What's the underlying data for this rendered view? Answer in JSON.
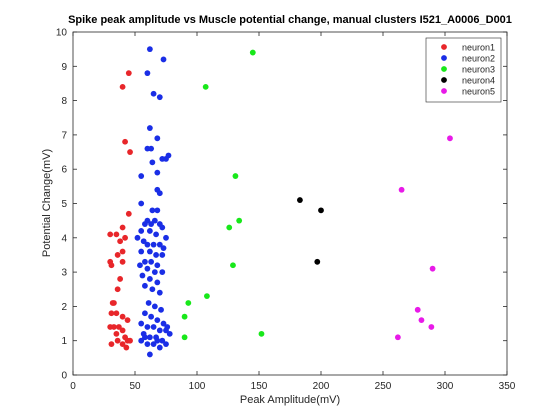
{
  "chart_data": {
    "type": "scatter",
    "title": "Spike peak amplitude vs Muscle potential change, manual clusters  I521_A0006_D001",
    "xlabel": "Peak Amplitude(mV)",
    "ylabel": "Potential Change(mV)",
    "xlim": [
      0,
      350
    ],
    "ylim": [
      0,
      10
    ],
    "xticks": [
      0,
      50,
      100,
      150,
      200,
      250,
      300,
      350
    ],
    "yticks": [
      0,
      1,
      2,
      3,
      4,
      5,
      6,
      7,
      8,
      9,
      10
    ],
    "grid": false,
    "legend_position": "top-right",
    "series": [
      {
        "name": "neuron1",
        "color": "#e8262a",
        "points": [
          [
            40,
            8.4
          ],
          [
            45,
            8.8
          ],
          [
            42,
            6.8
          ],
          [
            46,
            6.5
          ],
          [
            45,
            4.7
          ],
          [
            30,
            4.1
          ],
          [
            35,
            4.1
          ],
          [
            40,
            4.3
          ],
          [
            42,
            4.0
          ],
          [
            38,
            3.9
          ],
          [
            40,
            3.6
          ],
          [
            36,
            3.5
          ],
          [
            30,
            3.3
          ],
          [
            31,
            3.2
          ],
          [
            40,
            3.3
          ],
          [
            38,
            2.8
          ],
          [
            36,
            2.5
          ],
          [
            32,
            2.1
          ],
          [
            33,
            2.1
          ],
          [
            31,
            1.8
          ],
          [
            35,
            1.8
          ],
          [
            40,
            1.7
          ],
          [
            44,
            1.6
          ],
          [
            30,
            1.4
          ],
          [
            33,
            1.4
          ],
          [
            37,
            1.4
          ],
          [
            40,
            1.3
          ],
          [
            35,
            1.2
          ],
          [
            42,
            1.1
          ],
          [
            44,
            1.0
          ],
          [
            46,
            1.0
          ],
          [
            31,
            0.9
          ],
          [
            36,
            1.0
          ],
          [
            40,
            0.9
          ],
          [
            43,
            0.8
          ]
        ]
      },
      {
        "name": "neuron2",
        "color": "#1a2ee6",
        "points": [
          [
            62,
            9.5
          ],
          [
            73,
            9.2
          ],
          [
            60,
            8.8
          ],
          [
            65,
            8.2
          ],
          [
            70,
            8.1
          ],
          [
            62,
            7.2
          ],
          [
            68,
            6.9
          ],
          [
            60,
            6.6
          ],
          [
            63,
            6.6
          ],
          [
            72,
            6.3
          ],
          [
            77,
            6.4
          ],
          [
            75,
            6.3
          ],
          [
            64,
            6.2
          ],
          [
            68,
            5.9
          ],
          [
            55,
            5.8
          ],
          [
            68,
            5.4
          ],
          [
            70,
            5.3
          ],
          [
            55,
            5.0
          ],
          [
            64,
            4.8
          ],
          [
            68,
            4.8
          ],
          [
            60,
            4.5
          ],
          [
            58,
            4.4
          ],
          [
            63,
            4.4
          ],
          [
            66,
            4.5
          ],
          [
            70,
            4.4
          ],
          [
            72,
            4.3
          ],
          [
            55,
            4.2
          ],
          [
            62,
            4.2
          ],
          [
            67,
            4.1
          ],
          [
            75,
            4.0
          ],
          [
            52,
            4.0
          ],
          [
            57,
            3.9
          ],
          [
            60,
            3.8
          ],
          [
            65,
            3.8
          ],
          [
            70,
            3.8
          ],
          [
            73,
            3.7
          ],
          [
            55,
            3.6
          ],
          [
            62,
            3.6
          ],
          [
            67,
            3.5
          ],
          [
            72,
            3.5
          ],
          [
            58,
            3.3
          ],
          [
            63,
            3.3
          ],
          [
            68,
            3.2
          ],
          [
            54,
            3.2
          ],
          [
            60,
            3.1
          ],
          [
            66,
            3.0
          ],
          [
            72,
            3.0
          ],
          [
            56,
            2.9
          ],
          [
            62,
            2.8
          ],
          [
            68,
            2.7
          ],
          [
            58,
            2.6
          ],
          [
            64,
            2.5
          ],
          [
            70,
            2.4
          ],
          [
            61,
            2.1
          ],
          [
            66,
            2.0
          ],
          [
            71,
            1.9
          ],
          [
            58,
            1.8
          ],
          [
            63,
            1.7
          ],
          [
            68,
            1.6
          ],
          [
            73,
            1.5
          ],
          [
            76,
            1.4
          ],
          [
            55,
            1.5
          ],
          [
            60,
            1.4
          ],
          [
            65,
            1.4
          ],
          [
            70,
            1.3
          ],
          [
            75,
            1.3
          ],
          [
            78,
            1.2
          ],
          [
            57,
            1.2
          ],
          [
            62,
            1.1
          ],
          [
            67,
            1.1
          ],
          [
            72,
            1.0
          ],
          [
            55,
            1.0
          ],
          [
            60,
            0.9
          ],
          [
            65,
            0.9
          ],
          [
            70,
            0.8
          ],
          [
            62,
            0.6
          ],
          [
            75,
            0.9
          ],
          [
            68,
            1.0
          ],
          [
            58,
            1.1
          ]
        ]
      },
      {
        "name": "neuron3",
        "color": "#18e81a",
        "points": [
          [
            145,
            9.4
          ],
          [
            107,
            8.4
          ],
          [
            131,
            5.8
          ],
          [
            134,
            4.5
          ],
          [
            126,
            4.3
          ],
          [
            129,
            3.2
          ],
          [
            108,
            2.3
          ],
          [
            93,
            2.1
          ],
          [
            90,
            1.7
          ],
          [
            90,
            1.1
          ],
          [
            152,
            1.2
          ]
        ]
      },
      {
        "name": "neuron4",
        "color": "#000000",
        "points": [
          [
            183,
            5.1
          ],
          [
            200,
            4.8
          ],
          [
            197,
            3.3
          ]
        ]
      },
      {
        "name": "neuron5",
        "color": "#e81ae8",
        "points": [
          [
            304,
            6.9
          ],
          [
            265,
            5.4
          ],
          [
            290,
            3.1
          ],
          [
            278,
            1.9
          ],
          [
            281,
            1.6
          ],
          [
            289,
            1.4
          ],
          [
            262,
            1.1
          ]
        ]
      }
    ]
  }
}
